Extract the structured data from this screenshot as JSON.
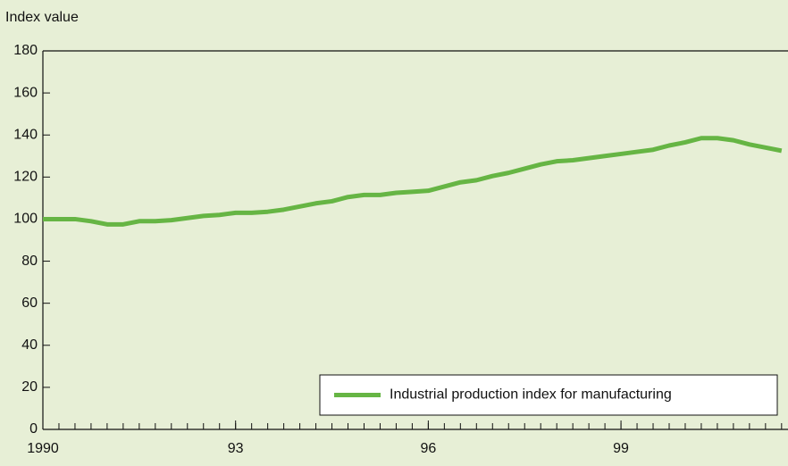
{
  "chart_data": {
    "type": "line",
    "y_axis_label": "Index value",
    "x": [
      1990,
      1990.25,
      1990.5,
      1990.75,
      1991,
      1991.25,
      1991.5,
      1991.75,
      1992,
      1992.25,
      1992.5,
      1992.75,
      1993,
      1993.25,
      1993.5,
      1993.75,
      1994,
      1994.25,
      1994.5,
      1994.75,
      1995,
      1995.25,
      1995.5,
      1995.75,
      1996,
      1996.25,
      1996.5,
      1996.75,
      1997,
      1997.25,
      1997.5,
      1997.75,
      1998,
      1998.25,
      1998.5,
      1998.75,
      1999,
      1999.25,
      1999.5,
      1999.75,
      2000,
      2000.25,
      2000.5,
      2000.75,
      2001,
      2001.25,
      2001.5
    ],
    "series": [
      {
        "name": "Industrial production index for manufacturing",
        "color": "#66b544",
        "values": [
          100,
          100,
          100,
          99,
          97.5,
          97.5,
          99,
          99,
          99.5,
          100.5,
          101.5,
          102,
          103,
          103,
          103.5,
          104.5,
          106,
          107.5,
          108.5,
          110.5,
          111.5,
          111.5,
          112.5,
          113,
          113.5,
          115.5,
          117.5,
          118.5,
          120.5,
          122,
          124,
          126,
          127.5,
          128,
          129,
          130,
          131,
          132,
          133,
          135,
          136.5,
          138.5,
          138.5,
          137.5,
          135.5,
          134,
          132.5
        ]
      }
    ],
    "xlim": [
      1990,
      2001.6
    ],
    "xticks": [
      {
        "value": 1990,
        "label": "1990"
      },
      {
        "value": 1993,
        "label": "93"
      },
      {
        "value": 1996,
        "label": "96"
      },
      {
        "value": 1999,
        "label": "99"
      }
    ],
    "ylim": [
      0,
      180
    ],
    "yticks": [
      0,
      20,
      40,
      60,
      80,
      100,
      120,
      140,
      160,
      180
    ],
    "legend_position": "lower right"
  }
}
